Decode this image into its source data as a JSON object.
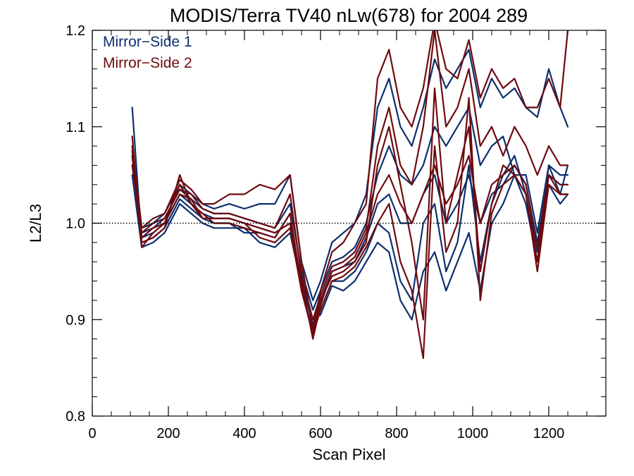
{
  "chart_data": {
    "type": "line",
    "title": "MODIS/Terra TV40 nLw(678) for 2004 289",
    "xlabel": "Scan Pixel",
    "ylabel": "L2/L3",
    "xlim": [
      0,
      1350
    ],
    "ylim": [
      0.8,
      1.2
    ],
    "x_ticks": [
      0,
      200,
      400,
      600,
      800,
      1000,
      1200
    ],
    "x_tick_labels": [
      "0",
      "200",
      "400",
      "600",
      "800",
      "1000",
      "1200"
    ],
    "y_ticks": [
      0.8,
      0.9,
      1.0,
      1.1,
      1.2
    ],
    "y_tick_labels": [
      "0.8",
      "0.9",
      "1.0",
      "1.1",
      "1.2"
    ],
    "reference_line": 1.0,
    "legend_position": "top-left",
    "colors": {
      "Mirror-Side 1": "#0d2f6e",
      "Mirror-Side 2": "#6e0a0f"
    },
    "x": [
      105,
      130,
      160,
      190,
      230,
      260,
      290,
      320,
      360,
      400,
      440,
      480,
      520,
      550,
      580,
      600,
      630,
      660,
      690,
      720,
      750,
      780,
      810,
      840,
      870,
      900,
      930,
      960,
      990,
      1020,
      1050,
      1080,
      1110,
      1140,
      1170,
      1200,
      1230,
      1250
    ],
    "series": [
      {
        "name": "Mirror-Side 1",
        "values": [
          1.07,
          0.985,
          0.99,
          1.0,
          1.03,
          1.02,
          1.01,
          1.005,
          1.005,
          1.0,
          0.995,
          0.99,
          1.0,
          0.94,
          0.895,
          0.92,
          0.95,
          0.955,
          0.96,
          0.985,
          1.02,
          1.03,
          1.0,
          1.0,
          1.03,
          1.05,
          1.0,
          1.02,
          1.05,
          1.0,
          1.03,
          1.04,
          1.06,
          1.04,
          0.98,
          1.05,
          1.04,
          1.04
        ]
      },
      {
        "name": "Mirror-Side 1",
        "values": [
          1.12,
          0.98,
          0.985,
          0.995,
          1.025,
          1.015,
          1.005,
          1.0,
          1.0,
          0.99,
          0.99,
          0.985,
          1.01,
          0.93,
          0.89,
          0.91,
          0.94,
          0.94,
          0.95,
          0.97,
          1.0,
          0.99,
          0.94,
          0.92,
          1.0,
          1.02,
          0.95,
          0.98,
          1.06,
          0.96,
          1.02,
          1.05,
          1.07,
          1.03,
          0.97,
          1.06,
          1.03,
          1.06
        ]
      },
      {
        "name": "Mirror-Side 1",
        "values": [
          1.06,
          0.99,
          0.995,
          1.005,
          1.035,
          1.025,
          1.015,
          1.01,
          1.01,
          1.005,
          1.0,
          0.995,
          1.02,
          0.95,
          0.91,
          0.93,
          0.96,
          0.965,
          0.975,
          1.0,
          1.05,
          1.08,
          1.05,
          1.04,
          1.06,
          1.1,
          1.08,
          1.1,
          1.12,
          1.06,
          1.08,
          1.09,
          1.05,
          1.05,
          0.99,
          1.06,
          1.05,
          1.05
        ]
      },
      {
        "name": "Mirror-Side 1",
        "values": [
          1.05,
          0.975,
          0.98,
          0.99,
          1.02,
          1.01,
          1.0,
          0.995,
          0.995,
          0.995,
          0.98,
          0.975,
          0.99,
          0.935,
          0.9,
          0.905,
          0.935,
          0.93,
          0.94,
          0.96,
          0.98,
          0.97,
          0.92,
          0.9,
          0.95,
          0.97,
          0.93,
          0.96,
          0.99,
          0.93,
          1.0,
          1.02,
          1.05,
          1.02,
          0.96,
          1.04,
          1.02,
          1.03
        ]
      },
      {
        "name": "Mirror-Side 1",
        "values": [
          1.08,
          0.995,
          1.0,
          1.01,
          1.04,
          1.03,
          1.02,
          1.015,
          1.02,
          1.015,
          1.02,
          1.02,
          1.05,
          0.96,
          0.92,
          0.94,
          0.98,
          0.99,
          1.0,
          1.03,
          1.12,
          1.15,
          1.1,
          1.08,
          1.12,
          1.17,
          1.14,
          1.16,
          1.18,
          1.12,
          1.15,
          1.13,
          1.14,
          1.12,
          1.11,
          1.16,
          1.12,
          1.1
        ]
      },
      {
        "name": "Mirror-Side 2",
        "values": [
          1.09,
          0.975,
          0.99,
          1.0,
          1.03,
          1.025,
          1.005,
          1.005,
          1.005,
          1.0,
          0.995,
          0.99,
          1.0,
          0.94,
          0.88,
          0.915,
          0.95,
          0.955,
          0.965,
          0.99,
          1.03,
          1.05,
          1.02,
          1.0,
          1.03,
          1.06,
          1.02,
          1.04,
          1.07,
          1.0,
          1.04,
          1.05,
          1.06,
          1.04,
          0.975,
          1.05,
          1.04,
          1.04
        ]
      },
      {
        "name": "Mirror-Side 2",
        "values": [
          1.07,
          0.98,
          0.985,
          0.995,
          1.05,
          1.02,
          1.01,
          1.0,
          1.0,
          0.995,
          0.99,
          0.985,
          1.01,
          0.935,
          0.885,
          0.92,
          0.945,
          0.95,
          0.96,
          0.98,
          1.06,
          1.1,
          1.04,
          0.98,
          0.9,
          1.14,
          1.0,
          1.05,
          1.1,
          0.95,
          1.02,
          1.06,
          1.05,
          1.03,
          0.96,
          1.05,
          1.03,
          1.03
        ]
      },
      {
        "name": "Mirror-Side 2",
        "values": [
          1.06,
          0.99,
          1.0,
          1.005,
          1.035,
          1.03,
          1.015,
          1.01,
          1.01,
          1.005,
          1.0,
          0.995,
          1.03,
          0.945,
          0.9,
          0.925,
          0.955,
          0.96,
          0.97,
          0.995,
          1.08,
          1.12,
          1.06,
          1.04,
          1.1,
          1.2,
          1.1,
          1.12,
          1.16,
          1.08,
          1.1,
          1.07,
          1.1,
          1.08,
          1.05,
          1.08,
          1.06,
          1.06
        ]
      },
      {
        "name": "Mirror-Side 2",
        "values": [
          1.075,
          0.985,
          0.995,
          1.0,
          1.04,
          1.02,
          1.005,
          1.005,
          1.005,
          1.0,
          0.985,
          0.98,
          0.995,
          0.93,
          0.885,
          0.91,
          0.94,
          0.945,
          0.955,
          0.975,
          1.0,
          1.02,
          0.96,
          0.93,
          0.86,
          1.08,
          0.97,
          1.0,
          1.13,
          0.92,
          1.01,
          1.04,
          1.05,
          1.03,
          0.95,
          1.04,
          1.03,
          1.03
        ]
      },
      {
        "name": "Mirror-Side 2",
        "values": [
          1.08,
          0.995,
          1.005,
          1.01,
          1.045,
          1.035,
          1.02,
          1.02,
          1.03,
          1.03,
          1.04,
          1.035,
          1.05,
          0.96,
          0.89,
          0.93,
          0.97,
          0.98,
          1.0,
          1.02,
          1.15,
          1.18,
          1.12,
          1.1,
          1.14,
          1.21,
          1.16,
          1.15,
          1.19,
          1.13,
          1.16,
          1.14,
          1.15,
          1.12,
          1.12,
          1.15,
          1.12,
          1.2
        ]
      }
    ]
  }
}
